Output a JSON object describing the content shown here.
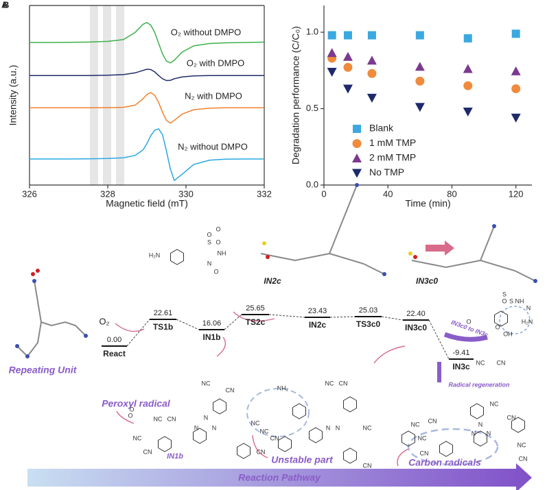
{
  "panel_labels": [
    "A",
    "B"
  ],
  "chart_data": [
    {
      "type": "line",
      "xlabel": "Magnetic field (mT)",
      "ylabel": "Intensity (a.u.)",
      "x": [
        326,
        326.5,
        327,
        327.5,
        328,
        328.4,
        328.7,
        328.9,
        329.0,
        329.1,
        329.2,
        329.3,
        329.4,
        329.5,
        329.6,
        329.7,
        329.9,
        330.2,
        330.6,
        331,
        331.5,
        332
      ],
      "xlim": [
        326,
        332
      ],
      "xticks": [
        326,
        328,
        330,
        332
      ],
      "ylim": [
        0,
        10
      ],
      "series": [
        {
          "name": "O₂ without DMPO",
          "color": "#3cb04a",
          "values": [
            7.94,
            7.94,
            7.95,
            7.96,
            8.0,
            8.1,
            8.5,
            8.95,
            9.05,
            8.9,
            8.5,
            7.9,
            7.3,
            6.9,
            6.8,
            6.95,
            7.4,
            7.75,
            7.88,
            7.92,
            7.94,
            7.96
          ]
        },
        {
          "name": "O₂ with DMPO",
          "color": "#1f2a6b",
          "values": [
            6.1,
            6.1,
            6.1,
            6.1,
            6.12,
            6.15,
            6.25,
            6.38,
            6.45,
            6.43,
            6.3,
            6.1,
            5.92,
            5.82,
            5.83,
            5.92,
            6.02,
            6.08,
            6.1,
            6.1,
            6.1,
            6.1
          ]
        },
        {
          "name": "N₂ with DMPO",
          "color": "#f0802e",
          "values": [
            4.3,
            4.3,
            4.3,
            4.3,
            4.31,
            4.33,
            4.45,
            4.8,
            5.05,
            5.15,
            5.0,
            4.6,
            4.05,
            3.6,
            3.45,
            3.6,
            3.95,
            4.2,
            4.28,
            4.3,
            4.3,
            4.3
          ]
        },
        {
          "name": "N₂ without DMPO",
          "color": "#29a8e0",
          "values": [
            1.45,
            1.45,
            1.45,
            1.46,
            1.48,
            1.52,
            1.65,
            1.95,
            2.3,
            2.75,
            3.05,
            3.13,
            2.8,
            1.9,
            0.9,
            0.25,
            0.6,
            1.15,
            1.38,
            1.44,
            1.45,
            1.45
          ]
        }
      ]
    },
    {
      "type": "scatter",
      "xlabel": "Time (min)",
      "ylabel": "Degradation performance (C/C₀)",
      "x": [
        5,
        15,
        30,
        60,
        90,
        120
      ],
      "xlim": [
        0,
        130
      ],
      "xticks": [
        0,
        40,
        80,
        120
      ],
      "ylim": [
        0,
        1.175
      ],
      "yticks": [
        {
          "value": 0,
          "label": "0.0"
        },
        {
          "value": 0.5,
          "label": "0.5"
        },
        {
          "value": 1,
          "label": "1.0"
        }
      ],
      "legend": "lower left",
      "series": [
        {
          "name": "Blank",
          "color": "#3ba8e0",
          "marker": "square",
          "values": [
            0.98,
            0.98,
            0.98,
            0.98,
            0.96,
            0.99
          ]
        },
        {
          "name": "1 mM TMP",
          "color": "#f08a3c",
          "marker": "circle",
          "values": [
            0.83,
            0.77,
            0.73,
            0.68,
            0.65,
            0.63
          ]
        },
        {
          "name": "2 mM TMP",
          "color": "#7b3a8f",
          "marker": "triangle",
          "values": [
            0.865,
            0.84,
            0.815,
            0.775,
            0.76,
            0.745
          ]
        },
        {
          "name": "No TMP",
          "color": "#1f2a6b",
          "marker": "triangle-down",
          "values": [
            0.74,
            0.63,
            0.57,
            0.51,
            0.48,
            0.44
          ]
        }
      ]
    }
  ],
  "diagram": {
    "levels": [
      {
        "label": "React",
        "energy": "0.00"
      },
      {
        "label": "TS1b",
        "energy": "22.61"
      },
      {
        "label": "IN1b",
        "energy": "16.06"
      },
      {
        "label": "TS2c",
        "energy": "25.65"
      },
      {
        "label": "IN2c",
        "energy": "23.43"
      },
      {
        "label": "TS3c0",
        "energy": "25.03"
      },
      {
        "label": "IN3c0",
        "energy": "22.40"
      },
      {
        "label": "IN3c",
        "energy": "-9.41"
      }
    ],
    "annotations": [
      "O₂",
      "Repeating Unit",
      "Peroxyl radical",
      "IN1b",
      "IN2c",
      "IN3c0",
      "Unstable part",
      "Carbon radicals",
      "Radical regeneration",
      "IN3c0 to IN3c"
    ],
    "atom_labels": [
      "O",
      "S",
      "O",
      "NH",
      "H₂N",
      "N",
      "O",
      "NC",
      "CN",
      "NC",
      "CN",
      "N",
      "N",
      "N",
      "NC",
      "CN",
      "NC",
      "CN",
      "O",
      "O",
      "NH₂",
      "O",
      "S",
      "NH",
      "N",
      "O",
      "OH",
      "H₂N",
      "O",
      "S",
      "O",
      "NC",
      "CN",
      "NC",
      "CN",
      "N",
      "N",
      "NC",
      "CN",
      "NC",
      "CN",
      "NC",
      "CN",
      "NC",
      "CN",
      "NC",
      "CN",
      "NC",
      "CN",
      "N",
      "N",
      "N"
    ],
    "pathway": "Reaction Pathway"
  }
}
